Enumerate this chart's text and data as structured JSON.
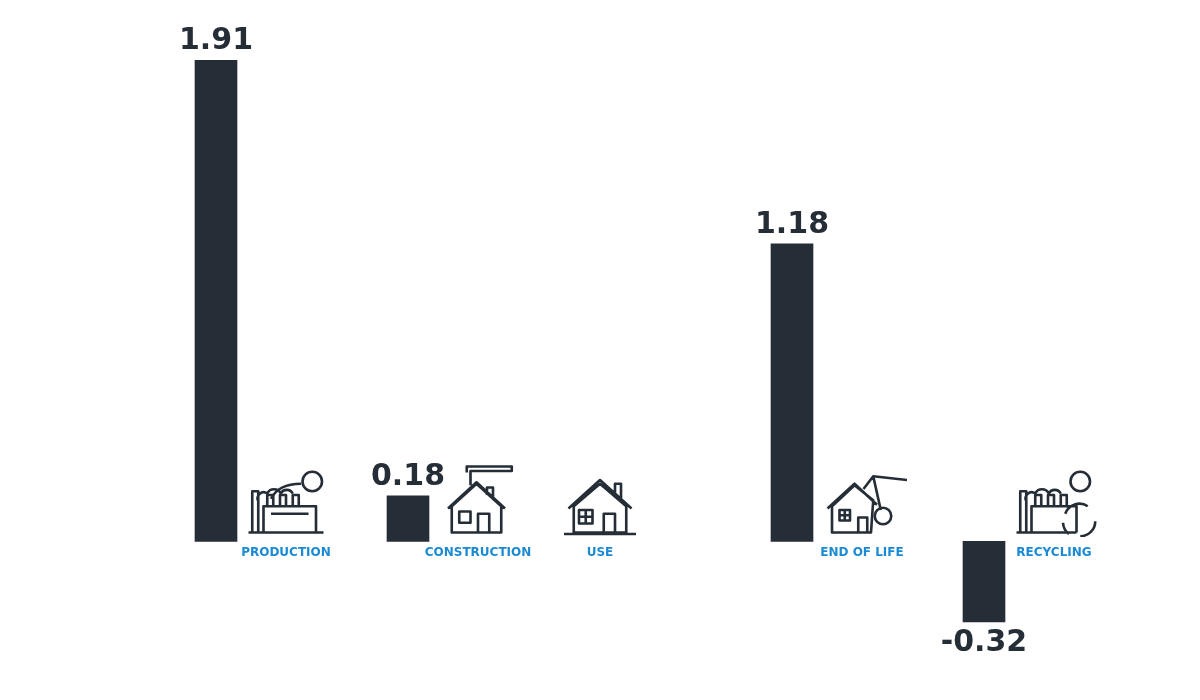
{
  "chart_data": {
    "type": "bar",
    "categories": [
      "PRODUCTION",
      "CONSTRUCTION",
      "USE",
      "END OF LIFE",
      "RECYCLING"
    ],
    "values": [
      1.91,
      0.18,
      null,
      1.18,
      -0.32
    ],
    "value_labels": [
      "1.91",
      "0.18",
      null,
      "1.18",
      "-0.32"
    ],
    "color": "#252d36"
  }
}
